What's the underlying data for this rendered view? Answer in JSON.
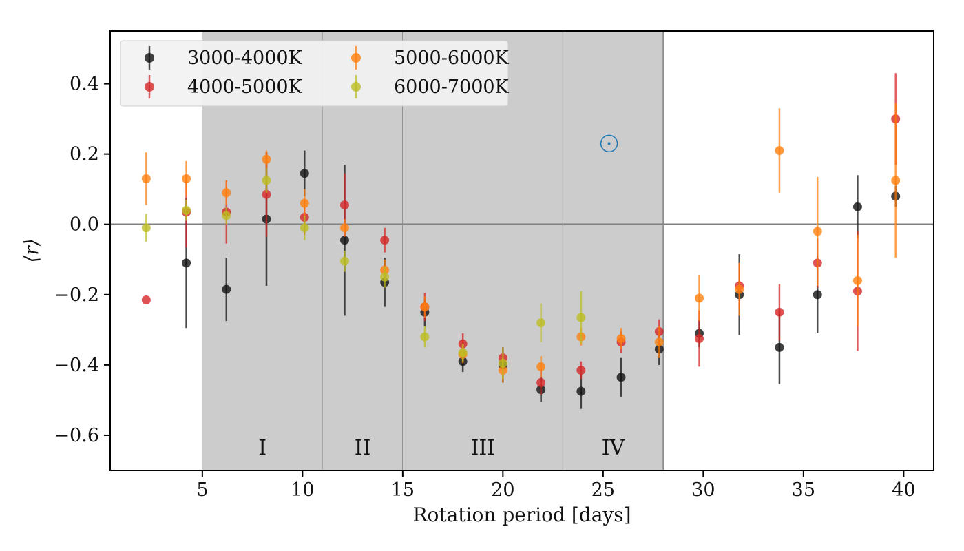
{
  "chart_data": {
    "type": "scatter",
    "title": "",
    "xlabel": "Rotation period [days]",
    "ylabel": "⟨r⟩",
    "xlim": [
      0.4,
      41.5
    ],
    "ylim": [
      -0.7,
      0.55
    ],
    "xticks": [
      5,
      10,
      15,
      20,
      25,
      30,
      35,
      40
    ],
    "yticks": [
      -0.6,
      -0.4,
      -0.2,
      0.0,
      0.2,
      0.4
    ],
    "ytick_labels": [
      "−0.6",
      "−0.4",
      "−0.2",
      "0.0",
      "0.2",
      "0.4"
    ],
    "zero_line": 0.0,
    "legend_position": "top-left",
    "regions": [
      {
        "label": "I",
        "x0": 5,
        "x1": 11
      },
      {
        "label": "II",
        "x0": 11,
        "x1": 15
      },
      {
        "label": "III",
        "x0": 15,
        "x1": 23
      },
      {
        "label": "IV",
        "x0": 23,
        "x1": 28
      }
    ],
    "sun": {
      "x": 25.3,
      "y": 0.23
    },
    "series": [
      {
        "name": "3000-4000K",
        "color": "#111111",
        "x": [
          4.2,
          6.2,
          8.2,
          10.1,
          12.1,
          14.1,
          16.1,
          18.0,
          20.0,
          21.9,
          23.9,
          25.9,
          27.8,
          29.8,
          31.8,
          33.8,
          35.7,
          37.7,
          39.6
        ],
        "y": [
          -0.11,
          -0.185,
          0.015,
          0.145,
          -0.045,
          -0.165,
          -0.25,
          -0.39,
          -0.4,
          -0.47,
          -0.475,
          -0.435,
          -0.355,
          -0.31,
          -0.2,
          -0.35,
          -0.2,
          0.05,
          0.08
        ],
        "err": [
          0.185,
          0.09,
          0.19,
          0.065,
          0.215,
          0.07,
          0.04,
          0.03,
          0.05,
          0.035,
          0.05,
          0.055,
          0.045,
          0.04,
          0.115,
          0.105,
          0.11,
          0.09,
          0.03
        ]
      },
      {
        "name": "4000-5000K",
        "color": "#d62728",
        "x": [
          2.2,
          4.2,
          6.2,
          8.2,
          10.1,
          12.1,
          14.1,
          16.1,
          18.0,
          20.0,
          21.9,
          23.9,
          25.9,
          27.8,
          29.8,
          31.8,
          33.8,
          35.7,
          37.7,
          39.6
        ],
        "y": [
          -0.215,
          0.035,
          0.035,
          0.085,
          0.02,
          0.055,
          -0.045,
          -0.235,
          -0.34,
          -0.38,
          -0.45,
          -0.415,
          -0.335,
          -0.305,
          -0.325,
          -0.175,
          -0.25,
          -0.11,
          -0.19,
          0.3
        ],
        "err": [
          0.0,
          0.1,
          0.09,
          0.12,
          0.05,
          0.09,
          0.035,
          0.04,
          0.03,
          0.03,
          0.035,
          0.025,
          0.03,
          0.035,
          0.08,
          0.065,
          0.08,
          0.07,
          0.17,
          0.13
        ]
      },
      {
        "name": "5000-6000K",
        "color": "#ff7f0e",
        "x": [
          2.2,
          4.2,
          6.2,
          8.2,
          10.1,
          12.1,
          14.1,
          16.1,
          18.0,
          20.0,
          21.9,
          23.9,
          25.9,
          27.8,
          29.8,
          31.8,
          33.8,
          35.7,
          37.7,
          39.6
        ],
        "y": [
          0.13,
          0.13,
          0.09,
          0.185,
          0.06,
          -0.01,
          -0.13,
          -0.235,
          -0.37,
          -0.415,
          -0.405,
          -0.32,
          -0.325,
          -0.335,
          -0.21,
          -0.185,
          0.21,
          -0.02,
          -0.16,
          0.125
        ],
        "err": [
          0.075,
          0.05,
          0.035,
          0.025,
          0.04,
          0.025,
          0.03,
          0.03,
          0.025,
          0.035,
          0.03,
          0.025,
          0.03,
          0.045,
          0.065,
          0.075,
          0.12,
          0.155,
          0.13,
          0.22
        ]
      },
      {
        "name": "6000-7000K",
        "color": "#bcbd22",
        "x": [
          2.2,
          4.2,
          6.2,
          8.2,
          10.1,
          12.1,
          14.1,
          16.1,
          18.0,
          20.0,
          21.9,
          23.9
        ],
        "y": [
          -0.01,
          0.04,
          0.025,
          0.125,
          -0.01,
          -0.105,
          -0.15,
          -0.32,
          -0.365,
          -0.395,
          -0.28,
          -0.265
        ],
        "err": [
          0.04,
          0.03,
          0.025,
          0.035,
          0.035,
          0.03,
          0.03,
          0.03,
          0.025,
          0.045,
          0.055,
          0.075
        ]
      }
    ]
  }
}
